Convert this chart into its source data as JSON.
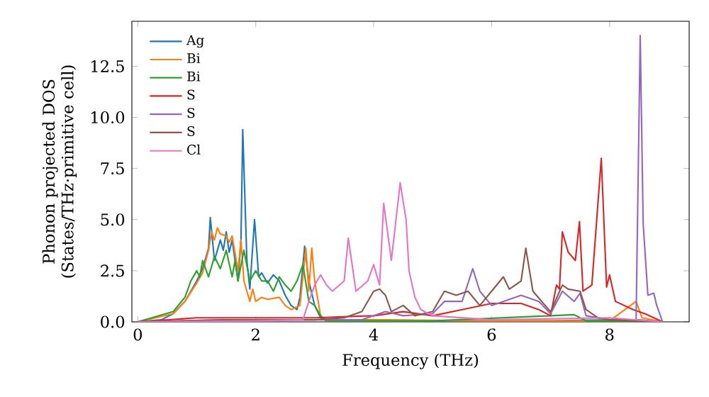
{
  "chart_data": {
    "type": "line",
    "xlabel": "Frequency (THz)",
    "ylabel": "Phonon projected DOS (States/THz·primitive cell)",
    "xlim": [
      -0.1,
      9.35
    ],
    "ylim": [
      0,
      14.7
    ],
    "xticks": [
      0,
      2,
      4,
      6,
      8
    ],
    "yticks": [
      {
        "value": 0,
        "label": "0.0"
      },
      {
        "value": 2.5,
        "label": "2.5"
      },
      {
        "value": 5,
        "label": "5.0"
      },
      {
        "value": 7.5,
        "label": "7.5"
      },
      {
        "value": 10,
        "label": "10.0"
      },
      {
        "value": 12.5,
        "label": "12.5"
      }
    ],
    "legend": "top left",
    "series": [
      {
        "name": "Ag",
        "color": "#1f77b4",
        "x": [
          0,
          0.4,
          0.6,
          0.8,
          1.0,
          1.1,
          1.2,
          1.23,
          1.3,
          1.4,
          1.45,
          1.5,
          1.55,
          1.6,
          1.7,
          1.75,
          1.78,
          1.85,
          1.9,
          1.98,
          2.05,
          2.1,
          2.2,
          2.3,
          2.4,
          2.5,
          2.6,
          2.7,
          2.75,
          2.83,
          2.9,
          3.0,
          3.1,
          3.2,
          4.0,
          5.0,
          6.0,
          7.0,
          8.0,
          8.5,
          8.9
        ],
        "values": [
          0,
          0.1,
          0.4,
          1.0,
          2.0,
          2.6,
          3.6,
          5.1,
          3.0,
          4.0,
          3.5,
          4.4,
          3.4,
          4.0,
          2.0,
          4.0,
          9.4,
          3.0,
          1.6,
          5.0,
          2.2,
          2.4,
          1.9,
          2.3,
          2.0,
          1.3,
          0.8,
          0.6,
          1.2,
          3.7,
          2.0,
          0.8,
          0.2,
          0.05,
          0.1,
          0.05,
          0.05,
          0.05,
          0.1,
          0.1,
          0
        ]
      },
      {
        "name": "Bi",
        "color": "#ff7f0e",
        "x": [
          0,
          0.6,
          0.8,
          1.0,
          1.1,
          1.2,
          1.25,
          1.3,
          1.35,
          1.4,
          1.5,
          1.55,
          1.6,
          1.7,
          1.75,
          1.8,
          1.9,
          1.95,
          2.0,
          2.1,
          2.2,
          2.4,
          2.5,
          2.6,
          2.75,
          2.85,
          2.9,
          2.95,
          3.0,
          3.1,
          3.2,
          4.0,
          6.0,
          8.0,
          8.45,
          8.55,
          8.9
        ],
        "values": [
          0,
          0.4,
          1.0,
          1.9,
          2.4,
          3.5,
          4.4,
          4.0,
          4.6,
          4.3,
          4.2,
          3.9,
          4.2,
          2.5,
          4.0,
          2.0,
          1.0,
          1.6,
          1.0,
          1.2,
          1.1,
          1.2,
          0.8,
          0.6,
          0.8,
          3.6,
          1.5,
          3.6,
          2.0,
          0.3,
          0.05,
          0.1,
          0.05,
          0.05,
          1.0,
          0.2,
          0
        ]
      },
      {
        "name": "Bi",
        "color": "#2ca02c",
        "x": [
          0,
          0.6,
          0.8,
          0.9,
          1.0,
          1.05,
          1.1,
          1.2,
          1.3,
          1.4,
          1.5,
          1.6,
          1.65,
          1.7,
          1.8,
          1.9,
          2.0,
          2.1,
          2.2,
          2.3,
          2.4,
          2.5,
          2.6,
          2.7,
          2.8,
          2.9,
          3.0,
          3.1,
          3.2,
          5.0,
          7.0,
          7.4,
          7.5,
          7.6,
          8.9
        ],
        "values": [
          0,
          0.5,
          1.2,
          2.0,
          2.5,
          2.2,
          3.0,
          2.2,
          3.2,
          2.6,
          3.5,
          2.2,
          3.0,
          2.0,
          3.5,
          2.0,
          2.5,
          2.0,
          2.0,
          1.5,
          2.2,
          1.8,
          1.5,
          2.0,
          2.8,
          1.0,
          0.8,
          0.3,
          0.05,
          0.05,
          0.3,
          0.35,
          0.2,
          0.05,
          0
        ]
      },
      {
        "name": "S",
        "color": "#d62728",
        "x": [
          0,
          1.0,
          2.0,
          3.0,
          4.0,
          4.5,
          5.0,
          5.5,
          6.0,
          6.5,
          6.8,
          7.0,
          7.1,
          7.15,
          7.2,
          7.3,
          7.42,
          7.49,
          7.55,
          7.7,
          7.86,
          7.95,
          8.0,
          8.1,
          8.4,
          8.6,
          8.9
        ],
        "values": [
          0,
          0.2,
          0.2,
          0.2,
          0.3,
          0.5,
          0.3,
          0.6,
          0.9,
          0.9,
          0.6,
          0.3,
          1.8,
          1.6,
          4.4,
          3.4,
          3.0,
          4.9,
          1.5,
          1.8,
          8.0,
          1.7,
          2.3,
          1.0,
          0.6,
          0.4,
          0
        ]
      },
      {
        "name": "S",
        "color": "#9467bd",
        "x": [
          0,
          1.5,
          3.0,
          3.8,
          4.2,
          4.5,
          5.0,
          5.2,
          5.5,
          5.68,
          5.8,
          6.0,
          6.2,
          6.5,
          6.8,
          7.0,
          7.2,
          7.4,
          7.5,
          7.6,
          8.0,
          8.45,
          8.52,
          8.57,
          8.65,
          8.75,
          8.8,
          8.9
        ],
        "values": [
          0,
          0.1,
          0.1,
          0.1,
          0.5,
          0.3,
          0.4,
          1.0,
          1.0,
          2.6,
          1.5,
          0.8,
          1.0,
          1.3,
          1.0,
          0.4,
          1.5,
          1.0,
          1.4,
          0.3,
          0.1,
          0.1,
          14.0,
          4.8,
          1.3,
          1.4,
          0.8,
          0
        ]
      },
      {
        "name": "S",
        "color": "#8c564b",
        "x": [
          0,
          1.5,
          3.0,
          3.5,
          3.8,
          4.0,
          4.1,
          4.2,
          4.3,
          4.5,
          4.7,
          5.0,
          5.2,
          5.4,
          5.6,
          5.8,
          6.0,
          6.2,
          6.3,
          6.5,
          6.58,
          6.7,
          7.0,
          7.2,
          7.3,
          7.5,
          7.6,
          7.8,
          8.0,
          8.9
        ],
        "values": [
          0,
          0.1,
          0.1,
          0.2,
          0.5,
          1.5,
          1.6,
          1.3,
          0.5,
          0.8,
          0.3,
          0.5,
          1.5,
          1.3,
          1.5,
          0.8,
          1.5,
          2.2,
          1.6,
          2.0,
          3.6,
          1.5,
          0.5,
          1.8,
          1.6,
          1.5,
          0.6,
          0.2,
          0.1,
          0
        ]
      },
      {
        "name": "Cl",
        "color": "#e377c2",
        "x": [
          0,
          2.0,
          2.8,
          2.9,
          3.0,
          3.1,
          3.2,
          3.3,
          3.5,
          3.57,
          3.7,
          3.9,
          4.0,
          4.1,
          4.17,
          4.3,
          4.45,
          4.55,
          4.6,
          4.7,
          4.8,
          5.0,
          6.0,
          8.0,
          8.9
        ],
        "values": [
          0,
          0.05,
          0.1,
          1.0,
          1.8,
          2.3,
          1.8,
          1.5,
          2.0,
          4.1,
          1.5,
          2.0,
          2.8,
          1.8,
          5.8,
          3.0,
          6.8,
          5.0,
          2.5,
          1.2,
          0.6,
          0.3,
          0.1,
          0.2,
          0
        ]
      }
    ]
  }
}
